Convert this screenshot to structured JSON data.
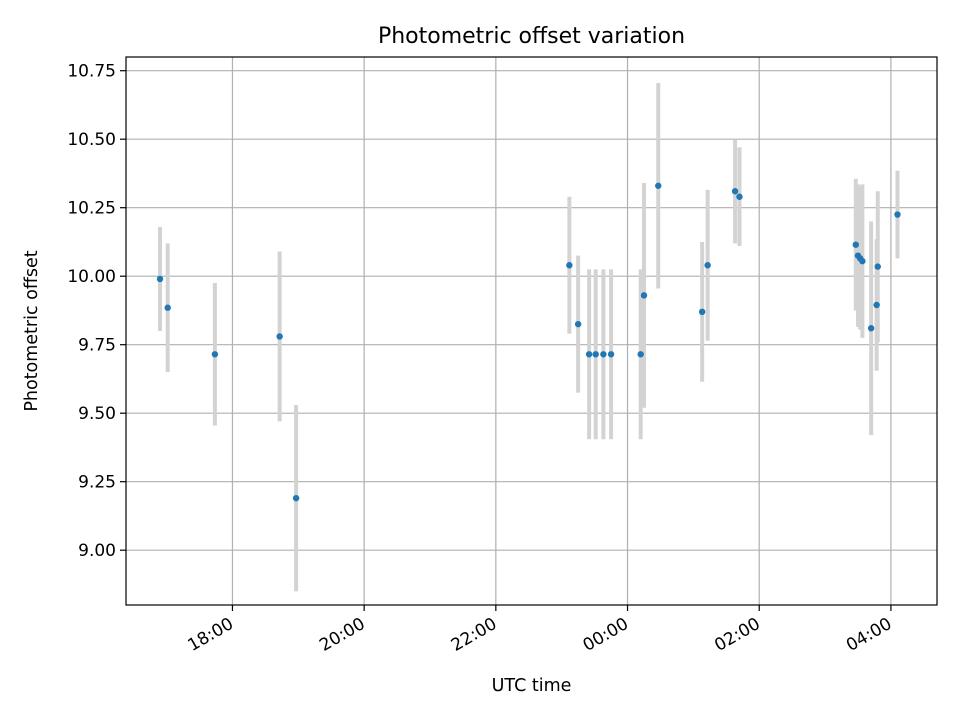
{
  "chart_data": {
    "type": "scatter",
    "title": "Photometric offset variation",
    "xlabel": "UTC time",
    "ylabel": "Photometric offset",
    "x_is_time": true,
    "xlim": [
      "16:23",
      "04:42"
    ],
    "ylim": [
      8.8,
      10.8
    ],
    "x_ticks": [
      "18:00",
      "20:00",
      "22:00",
      "00:00",
      "02:00",
      "04:00"
    ],
    "y_ticks": [
      "9.00",
      "9.25",
      "9.50",
      "9.75",
      "10.00",
      "10.25",
      "10.50",
      "10.75"
    ],
    "grid": true,
    "marker_color": "#1f77b4",
    "errorbar_color": "#d3d3d3",
    "points": [
      {
        "x": "16:54",
        "y": 9.99,
        "yerr": 0.19
      },
      {
        "x": "17:01",
        "y": 9.885,
        "yerr": 0.235
      },
      {
        "x": "17:44",
        "y": 9.715,
        "yerr": 0.26
      },
      {
        "x": "18:43",
        "y": 9.78,
        "yerr": 0.31
      },
      {
        "x": "18:58",
        "y": 9.19,
        "yerr": 0.34
      },
      {
        "x": "23:07",
        "y": 10.04,
        "yerr": 0.25
      },
      {
        "x": "23:15",
        "y": 9.825,
        "yerr": 0.25
      },
      {
        "x": "23:25",
        "y": 9.715,
        "yerr": 0.31
      },
      {
        "x": "23:31",
        "y": 9.715,
        "yerr": 0.31
      },
      {
        "x": "23:38",
        "y": 9.715,
        "yerr": 0.31
      },
      {
        "x": "23:45",
        "y": 9.715,
        "yerr": 0.31
      },
      {
        "x": "00:12",
        "y": 9.715,
        "yerr": 0.31
      },
      {
        "x": "00:15",
        "y": 9.93,
        "yerr": 0.41
      },
      {
        "x": "00:28",
        "y": 10.33,
        "yerr": 0.375
      },
      {
        "x": "01:08",
        "y": 9.87,
        "yerr": 0.255
      },
      {
        "x": "01:13",
        "y": 10.04,
        "yerr": 0.275
      },
      {
        "x": "01:38",
        "y": 10.31,
        "yerr": 0.19
      },
      {
        "x": "01:42",
        "y": 10.29,
        "yerr": 0.18
      },
      {
        "x": "03:28",
        "y": 10.115,
        "yerr": 0.24
      },
      {
        "x": "03:30",
        "y": 10.075,
        "yerr": 0.26
      },
      {
        "x": "03:32",
        "y": 10.065,
        "yerr": 0.26
      },
      {
        "x": "03:34",
        "y": 10.055,
        "yerr": 0.28
      },
      {
        "x": "03:42",
        "y": 9.81,
        "yerr": 0.39
      },
      {
        "x": "03:47",
        "y": 9.895,
        "yerr": 0.24
      },
      {
        "x": "03:48",
        "y": 10.035,
        "yerr": 0.275
      },
      {
        "x": "04:06",
        "y": 10.225,
        "yerr": 0.16
      }
    ]
  }
}
